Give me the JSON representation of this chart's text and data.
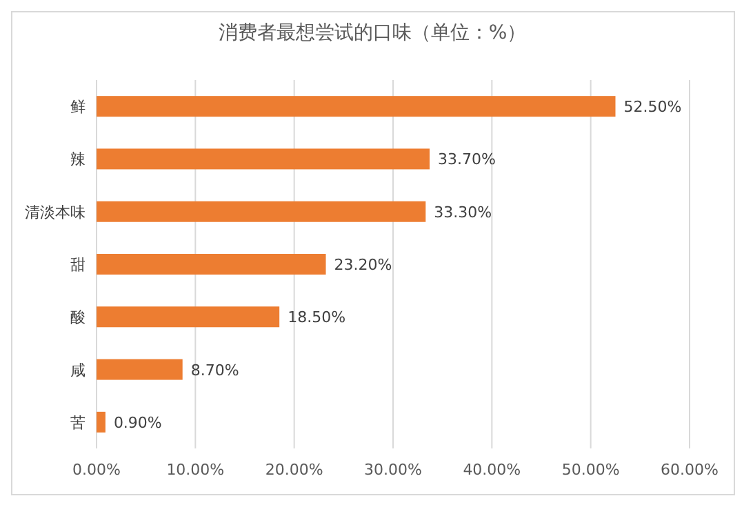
{
  "chart_data": {
    "type": "bar",
    "orientation": "horizontal",
    "title": "消费者最想尝试的口味（单位：%）",
    "categories": [
      "鲜",
      "辣",
      "清淡本味",
      "甜",
      "酸",
      "咸",
      "苦"
    ],
    "values": [
      52.5,
      33.7,
      33.3,
      23.2,
      18.5,
      8.7,
      0.9
    ],
    "value_labels": [
      "52.50%",
      "33.70%",
      "33.30%",
      "23.20%",
      "18.50%",
      "8.70%",
      "0.90%"
    ],
    "color": "#ed7d31",
    "xlim": [
      0,
      60
    ],
    "xticks": [
      {
        "value": 0,
        "label": "0.00%"
      },
      {
        "value": 10,
        "label": "10.00%"
      },
      {
        "value": 20,
        "label": "20.00%"
      },
      {
        "value": 30,
        "label": "30.00%"
      },
      {
        "value": 40,
        "label": "40.00%"
      },
      {
        "value": 50,
        "label": "50.00%"
      },
      {
        "value": 60,
        "label": "60.00%"
      }
    ],
    "grid": "x"
  }
}
